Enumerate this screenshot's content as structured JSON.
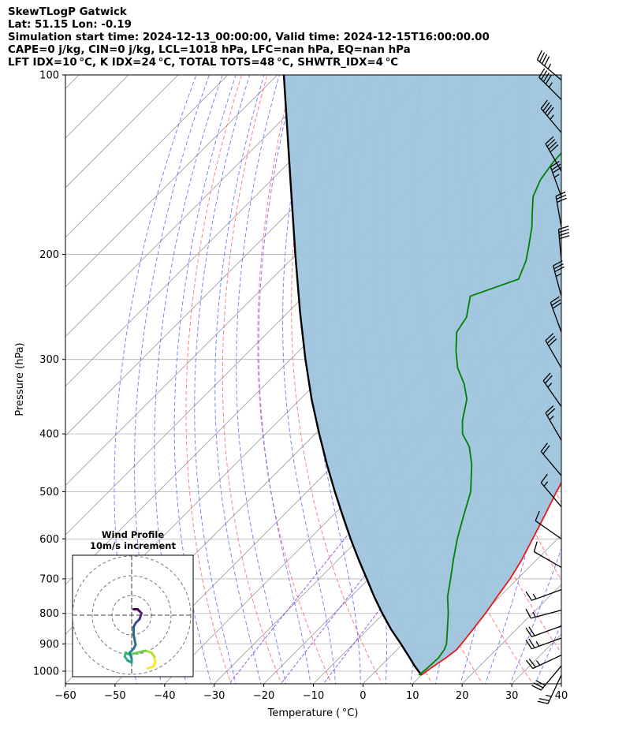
{
  "header": {
    "line1": "SkewTLogP Gatwick",
    "line2": "Lat: 51.15   Lon: -0.19",
    "line3": "Simulation start time: 2024-12-13_00:00:00, Valid time: 2024-12-15T16:00:00.00",
    "line4": "CAPE=0 j/kg, CIN=0 j/kg, LCL=1018 hPa, LFC=nan hPa, EQ=nan hPa",
    "line5": "LFT IDX=10 °C, K IDX=24 °C, TOTAL TOTS=48 °C, SHWTR_IDX=4 °C"
  },
  "inset": {
    "title_line1": "Wind Profile",
    "title_line2": "10m/s increment"
  },
  "colors": {
    "temperature": "#e41a1c",
    "dewpoint": "#008000",
    "parcel": "#000000",
    "shade": "#9ec4dd",
    "dry_adiabat": "#ff5555",
    "moist_adiabat": "#4a5cff",
    "mixing_ratio": "#8a2be2",
    "isotherm": "#9a9a9a"
  },
  "chart_data": {
    "type": "skewt-logp",
    "xlabel": "Temperature ( °C)",
    "ylabel": "Pressure (hPa)",
    "xlim": [
      -60,
      40
    ],
    "ylim": [
      1050,
      100
    ],
    "y_scale": "log",
    "grid": true,
    "x_ticks": [
      -60,
      -50,
      -40,
      -30,
      -20,
      -10,
      0,
      10,
      20,
      30,
      40
    ],
    "x_tick_labels": [
      "−60",
      "−50",
      "−40",
      "−30",
      "−20",
      "−10",
      "0",
      "10",
      "20",
      "30",
      "40"
    ],
    "y_ticks": [
      1000,
      900,
      800,
      700,
      600,
      500,
      400,
      300,
      200,
      100
    ],
    "y_tick_labels": [
      "1000",
      "900",
      "800",
      "700",
      "600",
      "500",
      "400",
      "300",
      "200",
      "100"
    ],
    "series": [
      {
        "key": "temperature",
        "p": [
          1015,
          990,
          950,
          920,
          900,
          850,
          800,
          750,
          700,
          650,
          600,
          550,
          500,
          470,
          450,
          420,
          400,
          380,
          350,
          320,
          300,
          280,
          260,
          240,
          220,
          200,
          190,
          180,
          170,
          160,
          150,
          140,
          130,
          120,
          110,
          100
        ],
        "t": [
          10.0,
          10.5,
          11.5,
          12.0,
          11.8,
          11.2,
          10.5,
          9.5,
          8.5,
          7.0,
          5.0,
          2.8,
          0.3,
          -1.2,
          -2.4,
          -4.8,
          -6.8,
          -9.0,
          -12.8,
          -16.6,
          -19.7,
          -22.6,
          -26.0,
          -29.7,
          -34.2,
          -38.7,
          -41.5,
          -43.9,
          -47.4,
          -51.0,
          -54.8,
          -58.5,
          -62.6,
          -63.0,
          -61.3,
          -60.3
        ]
      },
      {
        "key": "dewpoint",
        "p": [
          1015,
          990,
          950,
          920,
          900,
          850,
          800,
          750,
          700,
          650,
          600,
          550,
          500,
          450,
          420,
          400,
          380,
          350,
          330,
          310,
          290,
          270,
          255,
          235,
          220,
          205,
          195,
          180,
          170,
          160,
          150,
          140,
          130,
          120,
          110,
          100
        ],
        "t": [
          9.5,
          9.8,
          10.0,
          9.5,
          8.8,
          6.0,
          3.0,
          -0.5,
          -3.5,
          -6.8,
          -10.2,
          -13.5,
          -17.0,
          -22.3,
          -26.4,
          -30.3,
          -33.0,
          -36.4,
          -40.0,
          -44.6,
          -48.4,
          -52.0,
          -53.0,
          -56.5,
          -50.2,
          -52.4,
          -54.5,
          -58.0,
          -60.9,
          -63.9,
          -65.8,
          -66.8,
          -67.2,
          -65.3,
          -65.8,
          -66.5
        ]
      },
      {
        "key": "parcel",
        "p": [
          1015,
          980,
          950,
          900,
          850,
          800,
          750,
          700,
          650,
          600,
          550,
          500,
          450,
          400,
          350,
          300,
          250,
          200,
          150,
          100
        ],
        "t": [
          10.0,
          6.8,
          4.2,
          -0.4,
          -5.4,
          -10.3,
          -15.3,
          -20.4,
          -25.9,
          -31.7,
          -37.8,
          -44.4,
          -51.5,
          -59.2,
          -67.7,
          -77.0,
          -87.6,
          -100.2,
          -116.2,
          -138.7
        ]
      }
    ],
    "wind_barbs": [
      {
        "p": 1015,
        "speed_kt": 25,
        "dir": 205
      },
      {
        "p": 980,
        "speed_kt": 30,
        "dir": 220
      },
      {
        "p": 940,
        "speed_kt": 25,
        "dir": 245
      },
      {
        "p": 880,
        "speed_kt": 25,
        "dir": 250
      },
      {
        "p": 840,
        "speed_kt": 20,
        "dir": 250
      },
      {
        "p": 790,
        "speed_kt": 15,
        "dir": 255
      },
      {
        "p": 730,
        "speed_kt": 15,
        "dir": 250
      },
      {
        "p": 670,
        "speed_kt": 10,
        "dir": 300
      },
      {
        "p": 600,
        "speed_kt": 10,
        "dir": 305
      },
      {
        "p": 530,
        "speed_kt": 15,
        "dir": 320
      },
      {
        "p": 470,
        "speed_kt": 20,
        "dir": 320
      },
      {
        "p": 410,
        "speed_kt": 25,
        "dir": 330
      },
      {
        "p": 360,
        "speed_kt": 25,
        "dir": 325
      },
      {
        "p": 310,
        "speed_kt": 30,
        "dir": 330
      },
      {
        "p": 270,
        "speed_kt": 30,
        "dir": 340
      },
      {
        "p": 235,
        "speed_kt": 35,
        "dir": 345
      },
      {
        "p": 205,
        "speed_kt": 40,
        "dir": 355
      },
      {
        "p": 180,
        "speed_kt": 30,
        "dir": 350
      },
      {
        "p": 160,
        "speed_kt": 35,
        "dir": 340
      },
      {
        "p": 145,
        "speed_kt": 40,
        "dir": 330
      },
      {
        "p": 125,
        "speed_kt": 45,
        "dir": 320
      },
      {
        "p": 110,
        "speed_kt": 45,
        "dir": 315
      },
      {
        "p": 102,
        "speed_kt": 45,
        "dir": 310
      }
    ],
    "hodograph": {
      "ring_increment_ms": 10,
      "ring_count": 3,
      "u": [
        8,
        11,
        12,
        11.5,
        10,
        7,
        3,
        -1,
        -3,
        -3.5,
        -2,
        0,
        0,
        -1,
        1,
        2,
        1,
        1,
        2,
        4,
        5,
        4,
        3,
        1
      ],
      "v": [
        -27,
        -26,
        -24,
        -21,
        -19,
        -18,
        -19,
        -20,
        -19,
        -21,
        -23,
        -24,
        -22,
        -19,
        -17,
        -15,
        -10,
        -6,
        -4,
        -2,
        1,
        2,
        3,
        3
      ]
    }
  }
}
